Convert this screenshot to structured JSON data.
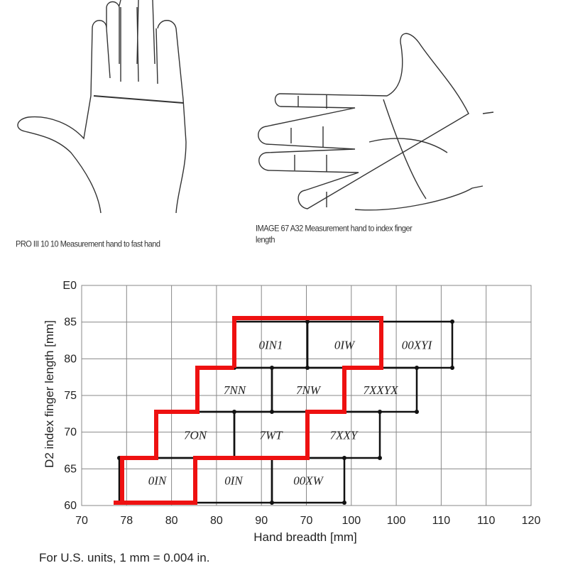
{
  "captions": {
    "left_figure": "PRO III 10 10   Measurement hand to fast hand",
    "right_figure_line1": "IMAGE 67 A32   Measurement hand to index finger",
    "right_figure_line2": "length"
  },
  "chart": {
    "ylabel": "D2 index finger length [mm]",
    "xlabel": "Hand breadth [mm]",
    "y_ticks": [
      "60",
      "65",
      "70",
      "75",
      "80",
      "85",
      "E0"
    ],
    "x_ticks": [
      "70",
      "78",
      "80",
      "80",
      "90",
      "70",
      "100",
      "100",
      "110",
      "110",
      "120"
    ],
    "cells": [
      "0IN1",
      "0IW",
      "00XYI",
      "7NN",
      "7NW",
      "7XXYX",
      "7ON",
      "7WT",
      "7XXY",
      "0IN",
      "0IN",
      "00XW"
    ],
    "highlight_color": "#ee1111",
    "grid_color": "#888888"
  },
  "footnote": "For U.S. units, 1 mm = 0.004 in."
}
